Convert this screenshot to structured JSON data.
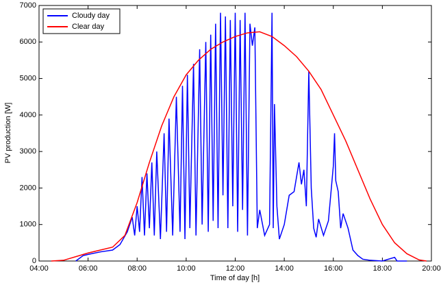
{
  "chart_data": {
    "type": "line",
    "xlabel": "Time of day [h]",
    "ylabel": "PV production [W]",
    "xlim": [
      4,
      20
    ],
    "xticks": [
      {
        "value": 4,
        "label": "04:00"
      },
      {
        "value": 6,
        "label": "06:00"
      },
      {
        "value": 8,
        "label": "08:00"
      },
      {
        "value": 10,
        "label": "10:00"
      },
      {
        "value": 12,
        "label": "12:00"
      },
      {
        "value": 14,
        "label": "14:00"
      },
      {
        "value": 16,
        "label": "16:00"
      },
      {
        "value": 18,
        "label": "18:00"
      },
      {
        "value": 20,
        "label": "20:00"
      }
    ],
    "ylim": [
      0,
      7000
    ],
    "yticks": [
      0,
      1000,
      2000,
      3000,
      4000,
      5000,
      6000,
      7000
    ],
    "legend": "upper left",
    "series": [
      {
        "name": "Cloudy day",
        "color": "#0000ff",
        "x": [
          5.5,
          5.8,
          6,
          6.5,
          7,
          7.3,
          7.6,
          7.8,
          7.9,
          8.0,
          8.1,
          8.2,
          8.3,
          8.4,
          8.5,
          8.6,
          8.7,
          8.8,
          8.95,
          9.1,
          9.2,
          9.3,
          9.45,
          9.6,
          9.75,
          9.85,
          9.95,
          10.05,
          10.15,
          10.3,
          10.4,
          10.55,
          10.65,
          10.8,
          10.9,
          11.0,
          11.1,
          11.2,
          11.3,
          11.4,
          11.5,
          11.6,
          11.7,
          11.8,
          11.9,
          12.0,
          12.1,
          12.2,
          12.3,
          12.4,
          12.5,
          12.6,
          12.7,
          12.8,
          12.9,
          13.0,
          13.2,
          13.4,
          13.5,
          13.55,
          13.6,
          13.7,
          13.8,
          14.0,
          14.2,
          14.4,
          14.6,
          14.7,
          14.8,
          14.9,
          15.0,
          15.1,
          15.2,
          15.3,
          15.4,
          15.6,
          15.8,
          16.0,
          16.05,
          16.1,
          16.2,
          16.3,
          16.4,
          16.5,
          16.6,
          16.8,
          17.0,
          17.2,
          17.5,
          18.0,
          18.5,
          18.6,
          19.0
        ],
        "values": [
          0,
          150,
          180,
          250,
          300,
          450,
          800,
          1200,
          700,
          1500,
          800,
          2300,
          700,
          2400,
          900,
          2700,
          700,
          3000,
          600,
          3500,
          800,
          3900,
          700,
          4500,
          800,
          4800,
          600,
          5100,
          900,
          5400,
          700,
          5800,
          1000,
          6000,
          800,
          6200,
          1100,
          6500,
          900,
          6800,
          1800,
          6700,
          900,
          6600,
          1500,
          6800,
          800,
          6600,
          1400,
          6800,
          700,
          6500,
          5900,
          6400,
          900,
          1400,
          700,
          1000,
          6800,
          900,
          4300,
          1500,
          600,
          1000,
          1800,
          1900,
          2700,
          2100,
          2500,
          1500,
          5200,
          2000,
          900,
          650,
          1150,
          700,
          1100,
          2600,
          3500,
          2200,
          1900,
          900,
          1300,
          1100,
          900,
          300,
          150,
          50,
          20,
          0,
          100,
          0,
          0
        ]
      },
      {
        "name": "Clear day",
        "color": "#ff0000",
        "x": [
          4.5,
          5,
          5.5,
          6,
          6.5,
          7,
          7.5,
          8,
          8.5,
          9,
          9.5,
          10,
          10.5,
          11,
          11.5,
          12,
          12.5,
          13,
          13.5,
          14,
          14.5,
          15,
          15.5,
          16,
          16.5,
          17,
          17.5,
          18,
          18.5,
          19,
          19.5,
          19.8
        ],
        "values": [
          0,
          20,
          120,
          220,
          300,
          380,
          700,
          1600,
          2700,
          3700,
          4500,
          5100,
          5500,
          5800,
          6000,
          6150,
          6250,
          6280,
          6150,
          5900,
          5600,
          5200,
          4700,
          4000,
          3300,
          2500,
          1700,
          1000,
          500,
          200,
          30,
          0
        ]
      }
    ]
  }
}
